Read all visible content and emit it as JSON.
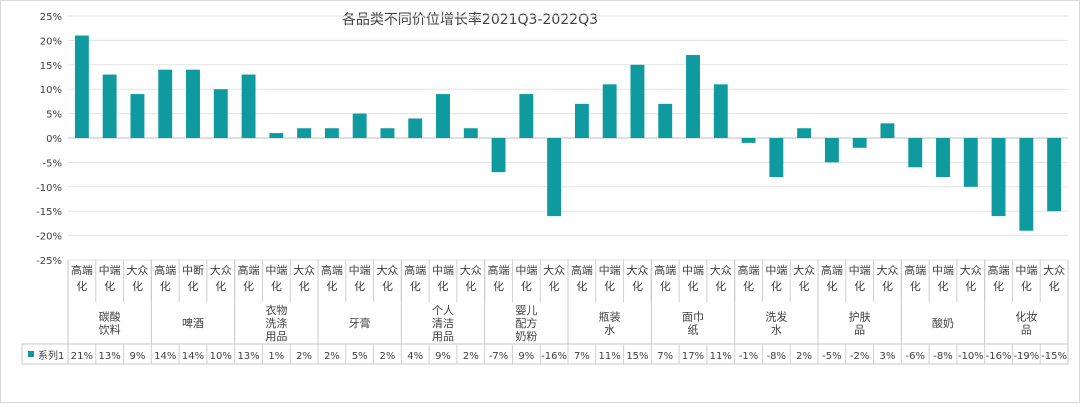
{
  "chart_data": {
    "type": "bar",
    "title": "各品类不同价位增长率2021Q3-2022Q3",
    "ylim": [
      -25,
      25
    ],
    "yticks": [
      "25%",
      "20%",
      "15%",
      "10%",
      "5%",
      "0%",
      "-5%",
      "-10%",
      "-15%",
      "-20%",
      "-25%"
    ],
    "bar_color": "#0e9a9e",
    "legend_label": "系列1",
    "groups": [
      {
        "name": "碳酸\n饮料",
        "subs": [
          "高端\n化",
          "中端\n化",
          "大众\n化"
        ],
        "values": [
          21,
          13,
          9
        ],
        "labels": [
          "21%",
          "13%",
          "9%"
        ]
      },
      {
        "name": "啤酒",
        "subs": [
          "高端\n化",
          "中断\n化",
          "大众\n化"
        ],
        "values": [
          14,
          14,
          10
        ],
        "labels": [
          "14%",
          "14%",
          "10%"
        ]
      },
      {
        "name": "衣物\n洗涤\n用品",
        "subs": [
          "高端\n化",
          "中端\n化",
          "大众\n化"
        ],
        "values": [
          13,
          1,
          2
        ],
        "labels": [
          "13%",
          "1%",
          "2%"
        ]
      },
      {
        "name": "牙膏",
        "subs": [
          "高端\n化",
          "中端\n化",
          "大众\n化"
        ],
        "values": [
          2,
          5,
          2
        ],
        "labels": [
          "2%",
          "5%",
          "2%"
        ]
      },
      {
        "name": "个人\n清洁\n用品",
        "subs": [
          "高端\n化",
          "中端\n化",
          "大众\n化"
        ],
        "values": [
          4,
          9,
          2
        ],
        "labels": [
          "4%",
          "9%",
          "2%"
        ]
      },
      {
        "name": "婴儿\n配方\n奶粉",
        "subs": [
          "高端\n化",
          "中端\n化",
          "大众\n化"
        ],
        "values": [
          -7,
          9,
          -16
        ],
        "labels": [
          "-7%",
          "9%",
          "-16%"
        ]
      },
      {
        "name": "瓶装\n水",
        "subs": [
          "高端\n化",
          "中端\n化",
          "大众\n化"
        ],
        "values": [
          7,
          11,
          15
        ],
        "labels": [
          "7%",
          "11%",
          "15%"
        ]
      },
      {
        "name": "面巾\n纸",
        "subs": [
          "高端\n化",
          "中端\n化",
          "大众\n化"
        ],
        "values": [
          7,
          17,
          11
        ],
        "labels": [
          "7%",
          "17%",
          "11%"
        ]
      },
      {
        "name": "洗发\n水",
        "subs": [
          "高端\n化",
          "中端\n化",
          "大众\n化"
        ],
        "values": [
          -1,
          -8,
          2
        ],
        "labels": [
          "-1%",
          "-8%",
          "2%"
        ]
      },
      {
        "name": "护肤\n品",
        "subs": [
          "高端\n化",
          "中端\n化",
          "大众\n化"
        ],
        "values": [
          -5,
          -2,
          3
        ],
        "labels": [
          "-5%",
          "-2%",
          "3%"
        ]
      },
      {
        "name": "酸奶",
        "subs": [
          "高端\n化",
          "中端\n化",
          "大众\n化"
        ],
        "values": [
          -6,
          -8,
          -10
        ],
        "labels": [
          "-6%",
          "-8%",
          "-10%"
        ]
      },
      {
        "name": "化妆\n品",
        "subs": [
          "高端\n化",
          "中端\n化",
          "大众\n化"
        ],
        "values": [
          -16,
          -19,
          -15
        ],
        "labels": [
          "-16%",
          "-19%",
          "-15%"
        ]
      }
    ]
  }
}
